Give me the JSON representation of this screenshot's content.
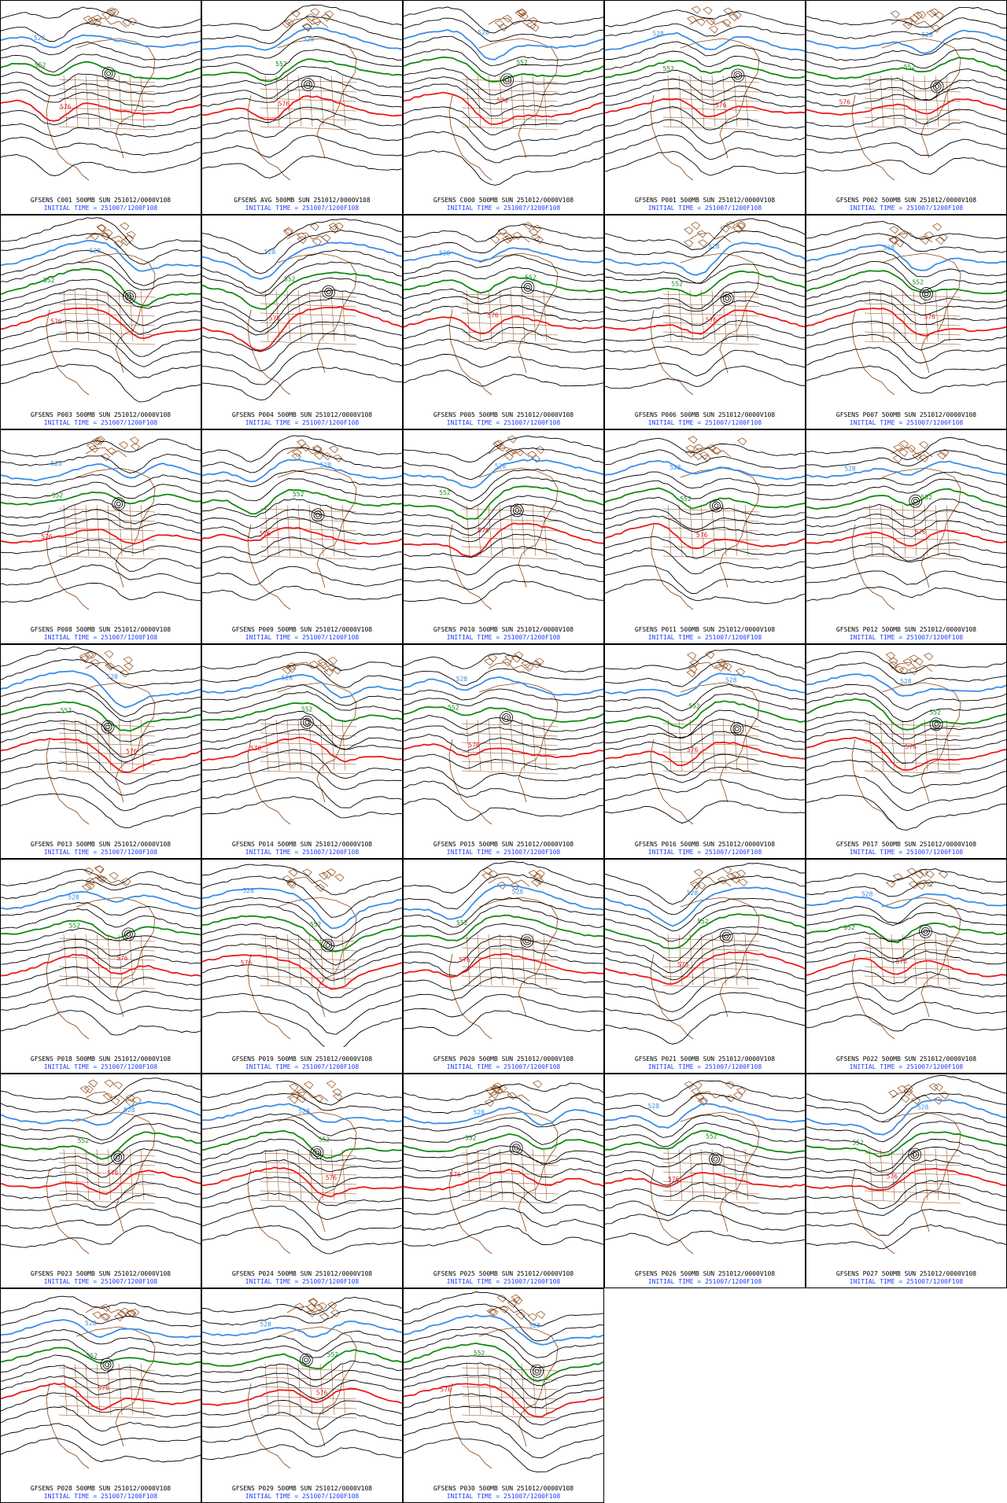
{
  "figure": {
    "initial_time": "INITIAL TIME = 251007/1200F108",
    "valid_suffix": "500MB SUN 251012/0000V108",
    "contour_labels": {
      "blue": "528",
      "green": "552",
      "red": "576"
    },
    "colors": {
      "background": "#ffffff",
      "contour_black": "#000000",
      "contour_blue": "#3a8ee6",
      "contour_green": "#138a13",
      "contour_red": "#e81c1c",
      "map_outline": "#8b4513",
      "caption_black": "#000000",
      "caption_blue": "#1f3fff"
    },
    "panels": [
      {
        "id": "C001",
        "label": "GFSENS C001 500MB SUN 251012/0000V108",
        "init": "INITIAL TIME = 251007/1200F108"
      },
      {
        "id": "AVG",
        "label": "GFSENS AVG 500MB SUN 251012/0000V108",
        "init": "INITIAL TIME = 251007/1200F108"
      },
      {
        "id": "C000",
        "label": "GFSENS C000 500MB SUN 251012/0000V108",
        "init": "INITIAL TIME = 251007/1200F108"
      },
      {
        "id": "P001",
        "label": "GFSENS P001 500MB SUN 251012/0000V108",
        "init": "INITIAL TIME = 251007/1200F108"
      },
      {
        "id": "P002",
        "label": "GFSENS P002 500MB SUN 251012/0000V108",
        "init": "INITIAL TIME = 251007/1200F108"
      },
      {
        "id": "P003",
        "label": "GFSENS P003 500MB SUN 251012/0000V108",
        "init": "INITIAL TIME = 251007/1200F108"
      },
      {
        "id": "P004",
        "label": "GFSENS P004 500MB SUN 251012/0000V108",
        "init": "INITIAL TIME = 251007/1200F108"
      },
      {
        "id": "P005",
        "label": "GFSENS P005 500MB SUN 251012/0000V108",
        "init": "INITIAL TIME = 251007/1200F108"
      },
      {
        "id": "P006",
        "label": "GFSENS P006 500MB SUN 251012/0000V108",
        "init": "INITIAL TIME = 251007/1200F108"
      },
      {
        "id": "P007",
        "label": "GFSENS P007 500MB SUN 251012/0000V108",
        "init": "INITIAL TIME = 251007/1200F108"
      },
      {
        "id": "P008",
        "label": "GFSENS P008 500MB SUN 251012/0000V108",
        "init": "INITIAL TIME = 251007/1200F108"
      },
      {
        "id": "P009",
        "label": "GFSENS P009 500MB SUN 251012/0000V108",
        "init": "INITIAL TIME = 251007/1200F108"
      },
      {
        "id": "P010",
        "label": "GFSENS P010 500MB SUN 251012/0000V108",
        "init": "INITIAL TIME = 251007/1200F108"
      },
      {
        "id": "P011",
        "label": "GFSENS P011 500MB SUN 251012/0000V108",
        "init": "INITIAL TIME = 251007/1200F108"
      },
      {
        "id": "P012",
        "label": "GFSENS P012 500MB SUN 251012/0000V108",
        "init": "INITIAL TIME = 251007/1200F108"
      },
      {
        "id": "P013",
        "label": "GFSENS P013 500MB SUN 251012/0000V108",
        "init": "INITIAL TIME = 251007/1200F108"
      },
      {
        "id": "P014",
        "label": "GFSENS P014 500MB SUN 251012/0000V108",
        "init": "INITIAL TIME = 251007/1200F108"
      },
      {
        "id": "P015",
        "label": "GFSENS P015 500MB SUN 251012/0000V108",
        "init": "INITIAL TIME = 251007/1200F108"
      },
      {
        "id": "P016",
        "label": "GFSENS P016 500MB SUN 251012/0000V108",
        "init": "INITIAL TIME = 251007/1200F108"
      },
      {
        "id": "P017",
        "label": "GFSENS P017 500MB SUN 251012/0000V108",
        "init": "INITIAL TIME = 251007/1200F108"
      },
      {
        "id": "P018",
        "label": "GFSENS P018 500MB SUN 251012/0000V108",
        "init": "INITIAL TIME = 251007/1200F108"
      },
      {
        "id": "P019",
        "label": "GFSENS P019 500MB SUN 251012/0000V108",
        "init": "INITIAL TIME = 251007/1200F108"
      },
      {
        "id": "P020",
        "label": "GFSENS P020 500MB SUN 251012/0000V108",
        "init": "INITIAL TIME = 251007/1200F108"
      },
      {
        "id": "P021",
        "label": "GFSENS P021 500MB SUN 251012/0000V108",
        "init": "INITIAL TIME = 251007/1200F108"
      },
      {
        "id": "P022",
        "label": "GFSENS P022 500MB SUN 251012/0000V108",
        "init": "INITIAL TIME = 251007/1200F108"
      },
      {
        "id": "P023",
        "label": "GFSENS P023 500MB SUN 251012/0000V108",
        "init": "INITIAL TIME = 251007/1200F108"
      },
      {
        "id": "P024",
        "label": "GFSENS P024 500MB SUN 251012/0000V108",
        "init": "INITIAL TIME = 251007/1200F108"
      },
      {
        "id": "P025",
        "label": "GFSENS P025 500MB SUN 251012/0000V108",
        "init": "INITIAL TIME = 251007/1200F108"
      },
      {
        "id": "P026",
        "label": "GFSENS P026 500MB SUN 251012/0000V108",
        "init": "INITIAL TIME = 251007/1200F108"
      },
      {
        "id": "P027",
        "label": "GFSENS P027 500MB SUN 251012/0000V108",
        "init": "INITIAL TIME = 251007/1200F108"
      },
      {
        "id": "P028",
        "label": "GFSENS P028 500MB SUN 251012/0000V108",
        "init": "INITIAL TIME = 251007/1200F108"
      },
      {
        "id": "P029",
        "label": "GFSENS P029 500MB SUN 251012/0000V108",
        "init": "INITIAL TIME = 251007/1200F108"
      },
      {
        "id": "P030",
        "label": "GFSENS P030 500MB SUN 251012/0000V108",
        "init": "INITIAL TIME = 251007/1200F108"
      }
    ]
  }
}
